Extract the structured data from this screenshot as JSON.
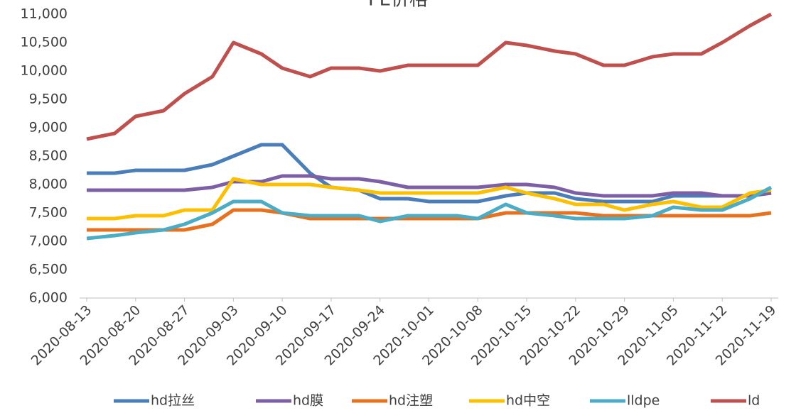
{
  "chart_data": {
    "type": "line",
    "title": "PE价格",
    "x": [
      "2020-08-13",
      "2020-08-17",
      "2020-08-20",
      "2020-08-24",
      "2020-08-27",
      "2020-08-31",
      "2020-09-03",
      "2020-09-07",
      "2020-09-10",
      "2020-09-14",
      "2020-09-17",
      "2020-09-21",
      "2020-09-24",
      "2020-09-28",
      "2020-10-01",
      "2020-10-05",
      "2020-10-08",
      "2020-10-12",
      "2020-10-15",
      "2020-10-19",
      "2020-10-22",
      "2020-10-26",
      "2020-10-29",
      "2020-11-02",
      "2020-11-05",
      "2020-11-09",
      "2020-11-12",
      "2020-11-16",
      "2020-11-19"
    ],
    "series": [
      {
        "name": "hd拉丝",
        "color": "#4a7ebb",
        "values": [
          8200,
          8200,
          8250,
          8250,
          8250,
          8350,
          8500,
          8700,
          8700,
          8200,
          7950,
          7900,
          7750,
          7750,
          7700,
          7700,
          7700,
          7800,
          7850,
          7850,
          7750,
          7700,
          7700,
          7700,
          7800,
          7800,
          7800,
          7800,
          7850
        ]
      },
      {
        "name": "hd膜",
        "color": "#7d5fa6",
        "values": [
          7900,
          7900,
          7900,
          7900,
          7900,
          7950,
          8050,
          8050,
          8150,
          8150,
          8100,
          8100,
          8050,
          7950,
          7950,
          7950,
          7950,
          8000,
          8000,
          7950,
          7850,
          7800,
          7800,
          7800,
          7850,
          7850,
          7800,
          7800,
          7850
        ]
      },
      {
        "name": "hd注塑",
        "color": "#e8711e",
        "values": [
          7200,
          7200,
          7200,
          7200,
          7200,
          7300,
          7550,
          7550,
          7500,
          7400,
          7400,
          7400,
          7400,
          7400,
          7400,
          7400,
          7400,
          7500,
          7500,
          7500,
          7500,
          7450,
          7450,
          7450,
          7450,
          7450,
          7450,
          7450,
          7500
        ]
      },
      {
        "name": "hd中空",
        "color": "#fcc000",
        "values": [
          7400,
          7400,
          7450,
          7450,
          7550,
          7550,
          8100,
          8000,
          8000,
          8000,
          7950,
          7900,
          7850,
          7850,
          7850,
          7850,
          7850,
          7950,
          7850,
          7750,
          7650,
          7650,
          7550,
          7650,
          7700,
          7600,
          7600,
          7850,
          7900
        ]
      },
      {
        "name": "lldpe",
        "color": "#4bacc6",
        "values": [
          7050,
          7100,
          7150,
          7200,
          7300,
          7500,
          7700,
          7700,
          7500,
          7450,
          7450,
          7450,
          7350,
          7450,
          7450,
          7450,
          7400,
          7650,
          7500,
          7450,
          7400,
          7400,
          7400,
          7450,
          7600,
          7550,
          7550,
          7750,
          7950
        ]
      },
      {
        "name": "ld",
        "color": "#c0504d",
        "values": [
          8800,
          8900,
          9200,
          9300,
          9600,
          9900,
          10500,
          10300,
          10050,
          9900,
          10050,
          10050,
          10000,
          10100,
          10100,
          10100,
          10100,
          10500,
          10450,
          10350,
          10300,
          10100,
          10100,
          10250,
          10300,
          10300,
          10500,
          10800,
          11000
        ]
      }
    ],
    "xlim": [
      "2020-08-13",
      "2020-11-19"
    ],
    "xticks": [
      "2020-08-13",
      "2020-08-20",
      "2020-08-27",
      "2020-09-03",
      "2020-09-10",
      "2020-09-17",
      "2020-09-24",
      "2020-10-01",
      "2020-10-08",
      "2020-10-15",
      "2020-10-22",
      "2020-10-29",
      "2020-11-05",
      "2020-11-12",
      "2020-11-19"
    ],
    "ylim": [
      6000,
      11000
    ],
    "yticks": [
      {
        "value": 6000,
        "label": "6,000"
      },
      {
        "value": 6500,
        "label": "6,500"
      },
      {
        "value": 7000,
        "label": "7,000"
      },
      {
        "value": 7500,
        "label": "7,500"
      },
      {
        "value": 8000,
        "label": "8,000"
      },
      {
        "value": 8500,
        "label": "8,500"
      },
      {
        "value": 9000,
        "label": "9,000"
      },
      {
        "value": 9500,
        "label": "9,500"
      },
      {
        "value": 10000,
        "label": "10,000"
      },
      {
        "value": 10500,
        "label": "10,500"
      },
      {
        "value": 11000,
        "label": "11,000"
      }
    ],
    "legend": "bottom"
  }
}
